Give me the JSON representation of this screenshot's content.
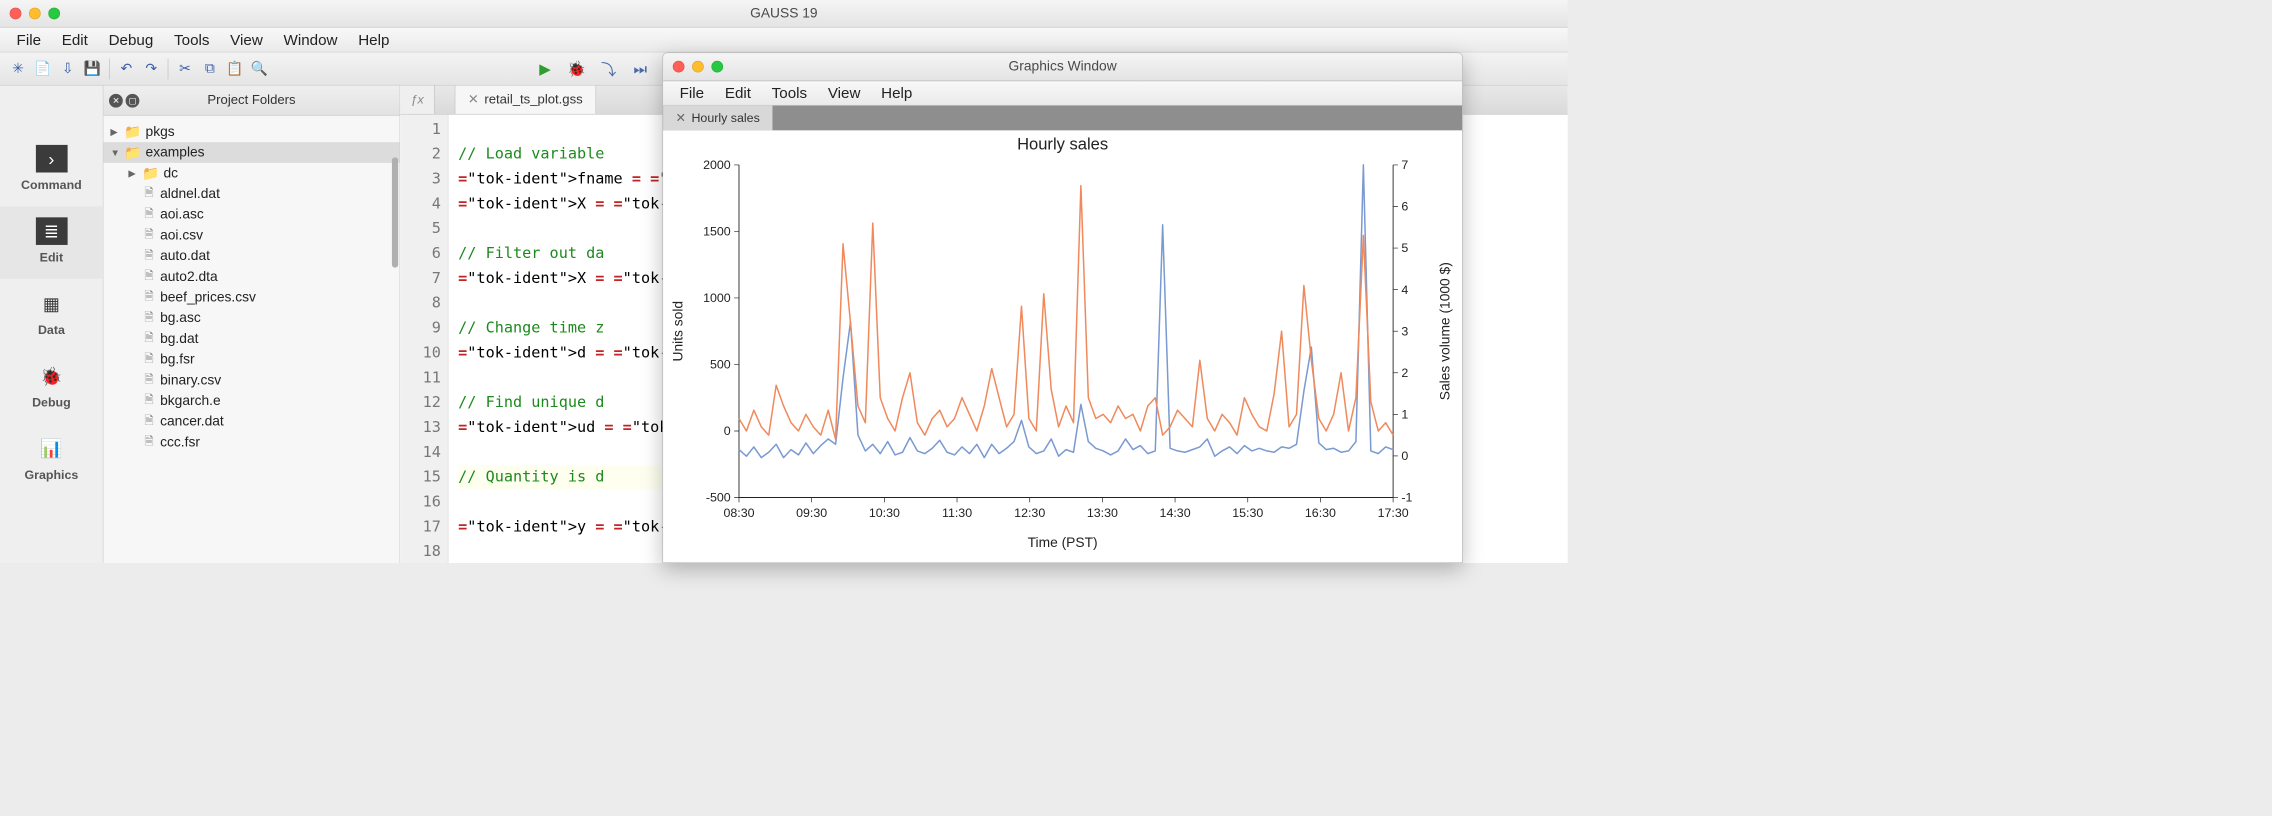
{
  "main": {
    "title": "GAUSS 19",
    "menus": [
      "File",
      "Edit",
      "Debug",
      "Tools",
      "View",
      "Window",
      "Help"
    ],
    "toolbar_icons": [
      "new-file-icon",
      "open-file-icon",
      "import-icon",
      "save-icon",
      "undo-icon",
      "redo-icon",
      "cut-icon",
      "copy-icon",
      "paste-icon",
      "search-icon"
    ],
    "run_icons": [
      "run-icon",
      "debug-run-icon",
      "step-icon",
      "continue-icon",
      "stop-icon"
    ]
  },
  "vnav": {
    "items": [
      {
        "key": "command",
        "label": "Command",
        "icon": "›",
        "active": false
      },
      {
        "key": "edit",
        "label": "Edit",
        "icon": "≣",
        "active": true
      },
      {
        "key": "data",
        "label": "Data",
        "icon": "▦",
        "active": false
      },
      {
        "key": "debug",
        "label": "Debug",
        "icon": "🐞",
        "active": false
      },
      {
        "key": "graphics",
        "label": "Graphics",
        "icon": "📊",
        "active": false
      }
    ]
  },
  "project": {
    "title": "Project Folders",
    "tree": [
      {
        "type": "folder",
        "name": "pkgs",
        "depth": 0,
        "expanded": false
      },
      {
        "type": "folder",
        "name": "examples",
        "depth": 0,
        "expanded": true,
        "selected": true
      },
      {
        "type": "folder",
        "name": "dc",
        "depth": 1,
        "expanded": false
      },
      {
        "type": "file",
        "name": "aldnel.dat",
        "depth": 1
      },
      {
        "type": "file",
        "name": "aoi.asc",
        "depth": 1
      },
      {
        "type": "file",
        "name": "aoi.csv",
        "depth": 1
      },
      {
        "type": "file",
        "name": "auto.dat",
        "depth": 1
      },
      {
        "type": "file",
        "name": "auto2.dta",
        "depth": 1
      },
      {
        "type": "file",
        "name": "beef_prices.csv",
        "depth": 1
      },
      {
        "type": "file",
        "name": "bg.asc",
        "depth": 1
      },
      {
        "type": "file",
        "name": "bg.dat",
        "depth": 1
      },
      {
        "type": "file",
        "name": "bg.fsr",
        "depth": 1
      },
      {
        "type": "file",
        "name": "binary.csv",
        "depth": 1
      },
      {
        "type": "file",
        "name": "bkgarch.e",
        "depth": 1
      },
      {
        "type": "file",
        "name": "cancer.dat",
        "depth": 1
      },
      {
        "type": "file",
        "name": "ccc.fsr",
        "depth": 1
      }
    ]
  },
  "editor": {
    "tab": "retail_ts_plot.gss",
    "highlight_line": 15,
    "lines": [
      "",
      "// Load variable",
      "fname = \"online_",
      "X = loadd(fname,",
      "",
      "// Filter out da",
      "X = selif(x, x[.",
      "",
      "// Change time z",
      "d = dttoutc(x[.,",
      "",
      "// Find unique d",
      "ud = unique(d);",
      "",
      "// Quantity is d",
      "y = x[.,2];",
      "",
      ""
    ]
  },
  "graphics": {
    "title": "Graphics Window",
    "menus": [
      "File",
      "Edit",
      "Tools",
      "View",
      "Help"
    ],
    "tab": "Hourly sales",
    "plot": {
      "title": "Hourly sales",
      "title_fontsize": 24,
      "xlabel": "Time (PST)",
      "ylabel_left": "Units sold",
      "ylabel_right": "Sales volume (1000 $)",
      "label_fontsize": 20,
      "tick_fontsize": 18,
      "background_color": "#ffffff",
      "frame_color": "#222222",
      "line_width": 2.2,
      "x_ticks": [
        "08:30",
        "09:30",
        "10:30",
        "11:30",
        "12:30",
        "13:30",
        "14:30",
        "15:30",
        "16:30",
        "17:30"
      ],
      "y_left": {
        "lim": [
          -500,
          2000
        ],
        "ticks": [
          -500,
          0,
          500,
          1000,
          1500,
          2000
        ]
      },
      "y_right": {
        "lim": [
          -1,
          7
        ],
        "ticks": [
          -1,
          0,
          1,
          2,
          3,
          4,
          5,
          6,
          7
        ]
      },
      "series": [
        {
          "name": "units_sold",
          "axis": "left",
          "color": "#7a9ad1",
          "y": [
            -140,
            -190,
            -120,
            -200,
            -160,
            -100,
            -200,
            -140,
            -180,
            -90,
            -170,
            -110,
            -60,
            -100,
            400,
            820,
            -30,
            -150,
            -100,
            -170,
            -80,
            -180,
            -160,
            -50,
            -150,
            -170,
            -130,
            -70,
            -160,
            -180,
            -120,
            -170,
            -100,
            -200,
            -100,
            -170,
            -130,
            -80,
            80,
            -120,
            -170,
            -150,
            -60,
            -190,
            -140,
            -160,
            200,
            -80,
            -130,
            -150,
            -180,
            -150,
            -60,
            -140,
            -110,
            -170,
            -150,
            1550,
            -130,
            -150,
            -160,
            -140,
            -120,
            -60,
            -190,
            -150,
            -120,
            -170,
            -110,
            -150,
            -130,
            -150,
            -160,
            -120,
            -130,
            -100,
            300,
            630,
            -90,
            -140,
            -130,
            -160,
            -150,
            -80,
            2000,
            -150,
            -170,
            -120,
            -140
          ]
        },
        {
          "name": "sales_volume",
          "axis": "right",
          "color": "#f08a5d",
          "y": [
            0.9,
            0.6,
            1.1,
            0.7,
            0.5,
            1.7,
            1.2,
            0.8,
            0.6,
            1.0,
            0.7,
            0.5,
            1.1,
            0.4,
            5.1,
            3.2,
            1.2,
            0.8,
            5.6,
            1.4,
            0.9,
            0.6,
            1.4,
            2.0,
            0.8,
            0.5,
            0.9,
            1.1,
            0.7,
            0.9,
            1.4,
            1.0,
            0.6,
            1.2,
            2.1,
            1.4,
            0.7,
            1.0,
            3.6,
            0.9,
            0.6,
            3.9,
            1.6,
            0.7,
            1.2,
            0.8,
            6.5,
            1.4,
            0.9,
            1.0,
            0.8,
            1.2,
            0.9,
            1.0,
            0.6,
            1.2,
            1.4,
            0.5,
            0.7,
            1.1,
            0.9,
            0.7,
            2.3,
            0.9,
            0.6,
            1.0,
            0.8,
            0.5,
            1.4,
            1.0,
            0.7,
            0.6,
            1.5,
            3.0,
            0.7,
            1.0,
            4.1,
            2.3,
            0.9,
            0.6,
            1.0,
            2.0,
            0.6,
            1.4,
            5.3,
            1.3,
            0.6,
            0.8,
            0.5
          ]
        }
      ]
    }
  }
}
